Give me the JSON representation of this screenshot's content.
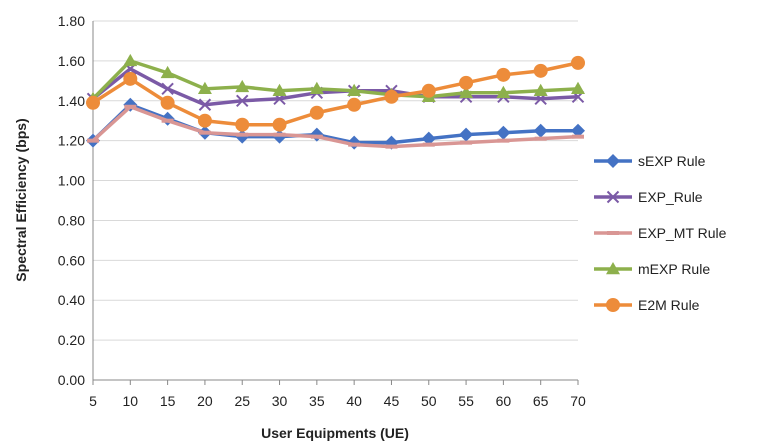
{
  "chart_data": {
    "type": "line",
    "title": "",
    "xlabel": "User Equipments (UE)",
    "ylabel": "Spectral Efficiency (bps)",
    "x": [
      5,
      10,
      15,
      20,
      25,
      30,
      35,
      40,
      45,
      50,
      55,
      60,
      65,
      70
    ],
    "ylim": [
      0,
      1.8
    ],
    "yticks": [
      "0.00",
      "0.20",
      "0.40",
      "0.60",
      "0.80",
      "1.00",
      "1.20",
      "1.40",
      "1.60",
      "1.80"
    ],
    "grid": "horizontal",
    "legend": "right",
    "series": [
      {
        "name": "sEXP Rule",
        "color": "#4472C4",
        "marker": "diamond",
        "values": [
          1.2,
          1.38,
          1.31,
          1.24,
          1.22,
          1.22,
          1.23,
          1.19,
          1.19,
          1.21,
          1.23,
          1.24,
          1.25,
          1.25
        ]
      },
      {
        "name": "EXP_Rule",
        "color": "#7B5AA6",
        "marker": "x",
        "values": [
          1.41,
          1.56,
          1.46,
          1.38,
          1.4,
          1.41,
          1.44,
          1.45,
          1.45,
          1.42,
          1.42,
          1.42,
          1.41,
          1.42
        ]
      },
      {
        "name": "EXP_MT Rule",
        "color": "#D99694",
        "marker": "dash",
        "values": [
          1.2,
          1.37,
          1.3,
          1.24,
          1.23,
          1.23,
          1.22,
          1.18,
          1.17,
          1.18,
          1.19,
          1.2,
          1.21,
          1.22
        ]
      },
      {
        "name": "mEXP Rule",
        "color": "#8DB04C",
        "marker": "triangle",
        "values": [
          1.41,
          1.6,
          1.54,
          1.46,
          1.47,
          1.45,
          1.46,
          1.45,
          1.43,
          1.42,
          1.44,
          1.44,
          1.45,
          1.46
        ]
      },
      {
        "name": "E2M Rule",
        "color": "#ED8C3A",
        "marker": "circle",
        "values": [
          1.39,
          1.51,
          1.39,
          1.3,
          1.28,
          1.28,
          1.34,
          1.38,
          1.42,
          1.45,
          1.49,
          1.53,
          1.55,
          1.59
        ]
      }
    ]
  }
}
